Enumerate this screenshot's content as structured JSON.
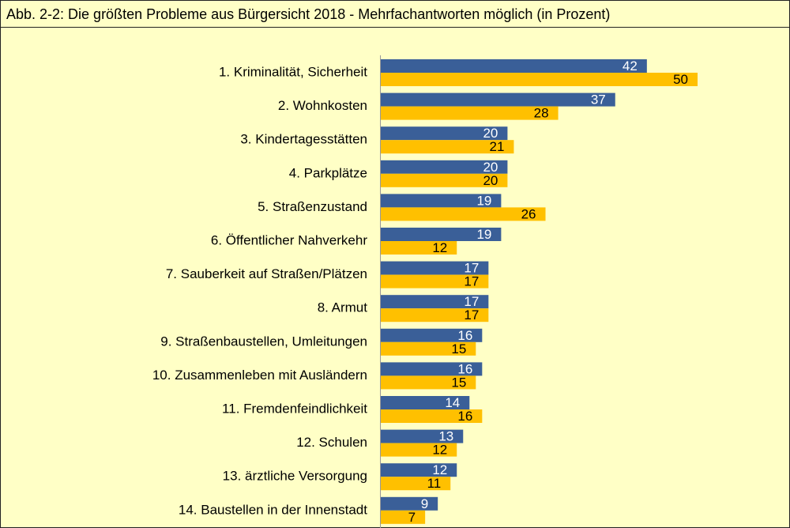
{
  "chart_data": {
    "type": "bar",
    "orientation": "horizontal",
    "title": "Abb. 2-2: Die größten Probleme aus Bürgersicht 2018 - Mehrfachantworten möglich (in Prozent)",
    "categories": [
      "1. Kriminalität, Sicherheit",
      "2. Wohnkosten",
      "3. Kindertagesstätten",
      "4. Parkplätze",
      "5. Straßenzustand",
      "6. Öffentlicher Nahverkehr",
      "7. Sauberkeit auf Straßen/Plätzen",
      "8. Armut",
      "9. Straßenbaustellen, Umleitungen",
      "10. Zusammenleben mit Ausländern",
      "11. Fremdenfeindlichkeit",
      "12. Schulen",
      "13. ärztliche Versorgung",
      "14. Baustellen in der Innenstadt"
    ],
    "series": [
      {
        "color": "#3a5f98",
        "label_color": "#ffffff",
        "values": [
          42,
          37,
          20,
          20,
          19,
          19,
          17,
          17,
          16,
          16,
          14,
          13,
          12,
          9
        ]
      },
      {
        "color": "#ffc000",
        "label_color": "#000000",
        "values": [
          50,
          28,
          21,
          20,
          26,
          12,
          17,
          17,
          15,
          15,
          16,
          12,
          11,
          7
        ]
      }
    ]
  }
}
